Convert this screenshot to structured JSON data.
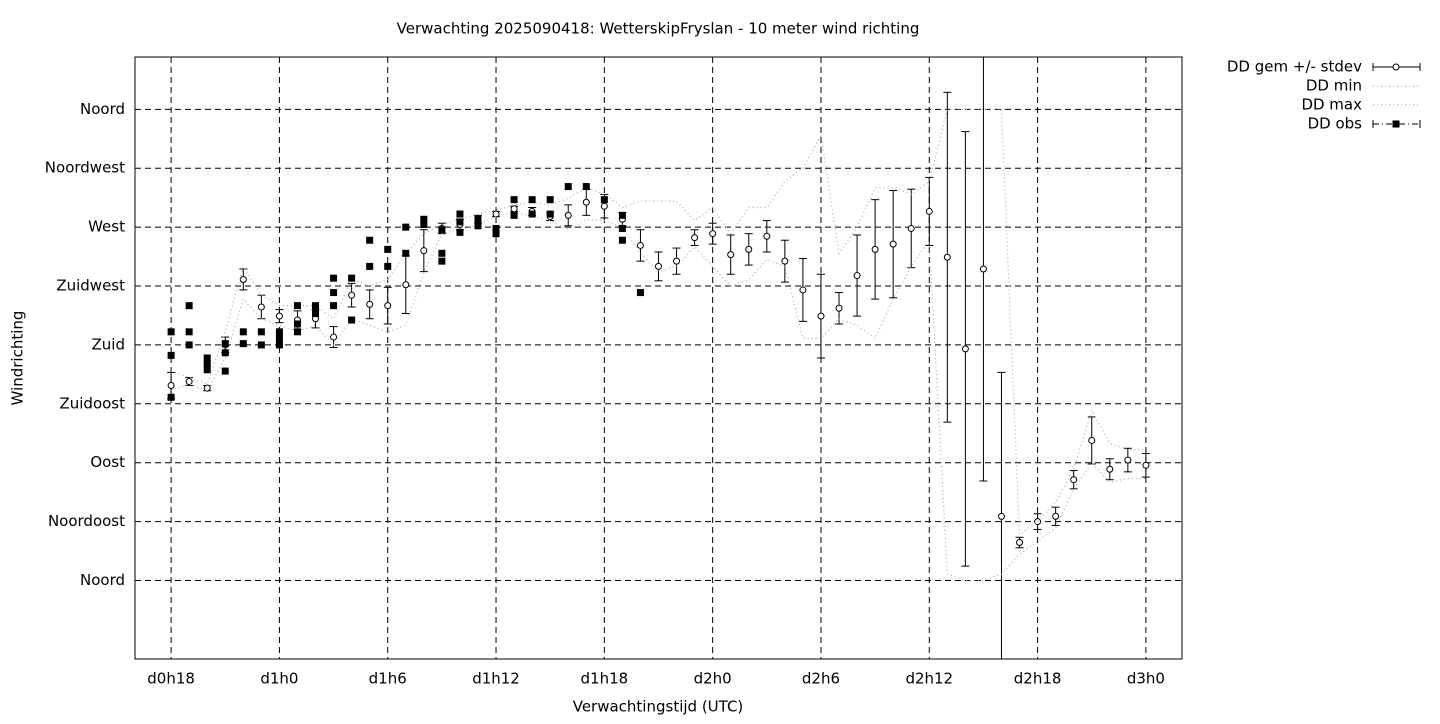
{
  "chart_data": {
    "type": "errorbar",
    "title": "Verwachting 2025090418: WetterskipFryslan - 10 meter wind richting",
    "x_label": "Verwachtingstijd (UTC)",
    "y_label": "Windrichting",
    "xlim": [
      16,
      74
    ],
    "ylim": [
      -60,
      400
    ],
    "grid": true,
    "legend": "outside-top-right",
    "xticks": [
      {
        "value": 18,
        "label": "d0h18"
      },
      {
        "value": 24,
        "label": "d1h0"
      },
      {
        "value": 30,
        "label": "d1h6"
      },
      {
        "value": 36,
        "label": "d1h12"
      },
      {
        "value": 42,
        "label": "d1h18"
      },
      {
        "value": 48,
        "label": "d2h0"
      },
      {
        "value": 54,
        "label": "d2h6"
      },
      {
        "value": 60,
        "label": "d2h12"
      },
      {
        "value": 66,
        "label": "d2h18"
      },
      {
        "value": 72,
        "label": "d3h0"
      }
    ],
    "yticks": [
      {
        "value": 0,
        "label": "Noord"
      },
      {
        "value": 45,
        "label": "Noordoost"
      },
      {
        "value": 90,
        "label": "Oost"
      },
      {
        "value": 135,
        "label": "Zuidoost"
      },
      {
        "value": 180,
        "label": "Zuid"
      },
      {
        "value": 225,
        "label": "Zuidwest"
      },
      {
        "value": 270,
        "label": "West"
      },
      {
        "value": 315,
        "label": "Noordwest"
      },
      {
        "value": 360,
        "label": "Noord"
      }
    ],
    "x": [
      18,
      19,
      20,
      21,
      22,
      23,
      24,
      25,
      26,
      27,
      28,
      29,
      30,
      31,
      32,
      33,
      34,
      35,
      36,
      37,
      38,
      39,
      40,
      41,
      42,
      43,
      44,
      45,
      46,
      47,
      48,
      49,
      50,
      51,
      52,
      53,
      54,
      55,
      56,
      57,
      58,
      59,
      60,
      61,
      62,
      63,
      64,
      65,
      66,
      67,
      68,
      69,
      70,
      71,
      72
    ],
    "series": [
      {
        "name": "DD gem +/- stdev",
        "color": "#000000",
        "values": [
          149,
          152,
          147,
          180,
          230,
          209,
          202,
          199,
          200,
          186,
          218,
          211,
          210,
          226,
          252,
          269,
          272,
          276,
          280,
          284,
          282,
          278,
          279,
          289,
          286,
          276,
          256,
          240,
          244,
          262,
          265,
          249,
          253,
          263,
          244,
          222,
          202,
          208,
          233,
          253,
          257,
          269,
          282,
          247,
          177,
          238,
          49,
          29,
          45,
          49,
          77,
          107,
          85,
          92,
          88
        ],
        "errors": [
          10,
          3,
          2,
          6,
          8,
          9,
          5,
          7,
          7,
          8,
          9,
          11,
          14,
          22,
          16,
          4,
          4,
          3,
          2,
          2,
          3,
          3,
          8,
          10,
          9,
          5,
          12,
          11,
          10,
          6,
          8,
          15,
          12,
          12,
          16,
          24,
          32,
          12,
          31,
          38,
          41,
          30,
          26,
          126,
          166,
          162,
          110,
          4,
          6,
          7,
          7,
          18,
          8,
          9,
          9
        ]
      },
      {
        "name": "DD min",
        "color": "#aaaaaa",
        "values": [
          145,
          150,
          145,
          170,
          215,
          200,
          195,
          190,
          195,
          180,
          200,
          195,
          190,
          195,
          235,
          265,
          268,
          272,
          278,
          282,
          278,
          275,
          268,
          276,
          275,
          270,
          250,
          236,
          240,
          255,
          240,
          225,
          230,
          245,
          240,
          185,
          185,
          200,
          195,
          185,
          215,
          240,
          260,
          5,
          0,
          0,
          5,
          20,
          30,
          40,
          70,
          90,
          75,
          78,
          78
        ]
      },
      {
        "name": "DD max",
        "color": "#aaaaaa",
        "values": [
          160,
          155,
          150,
          190,
          240,
          218,
          210,
          210,
          210,
          200,
          230,
          225,
          230,
          250,
          265,
          272,
          276,
          280,
          283,
          287,
          289,
          287,
          292,
          300,
          295,
          285,
          290,
          290,
          290,
          275,
          285,
          265,
          285,
          285,
          305,
          315,
          340,
          250,
          270,
          300,
          300,
          295,
          305,
          360,
          360,
          360,
          360,
          35,
          45,
          60,
          85,
          130,
          105,
          100,
          100
        ]
      },
      {
        "name": "DD obs",
        "color": "#000000",
        "x": [
          18,
          18,
          18,
          19,
          19,
          19,
          20,
          20,
          20,
          21,
          21,
          21,
          22,
          22,
          23,
          23,
          24,
          24,
          24,
          25,
          25,
          25,
          26,
          26,
          27,
          27,
          27,
          28,
          28,
          29,
          29,
          30,
          30,
          31,
          31,
          32,
          32,
          33,
          33,
          33,
          34,
          34,
          34,
          35,
          35,
          36,
          36,
          37,
          37,
          38,
          38,
          39,
          39,
          40,
          41,
          42,
          43,
          43,
          43,
          44
        ],
        "values": [
          190,
          172,
          140,
          210,
          190,
          180,
          170,
          166,
          161,
          181,
          174,
          160,
          190,
          181,
          190,
          180,
          190,
          185,
          180,
          210,
          196,
          190,
          210,
          204,
          231,
          220,
          210,
          231,
          199,
          260,
          240,
          253,
          240,
          270,
          250,
          276,
          272,
          268,
          250,
          244,
          280,
          274,
          266,
          276,
          271,
          269,
          265,
          291,
          279,
          291,
          280,
          291,
          280,
          301,
          301,
          291,
          279,
          269,
          260,
          220
        ]
      }
    ]
  }
}
